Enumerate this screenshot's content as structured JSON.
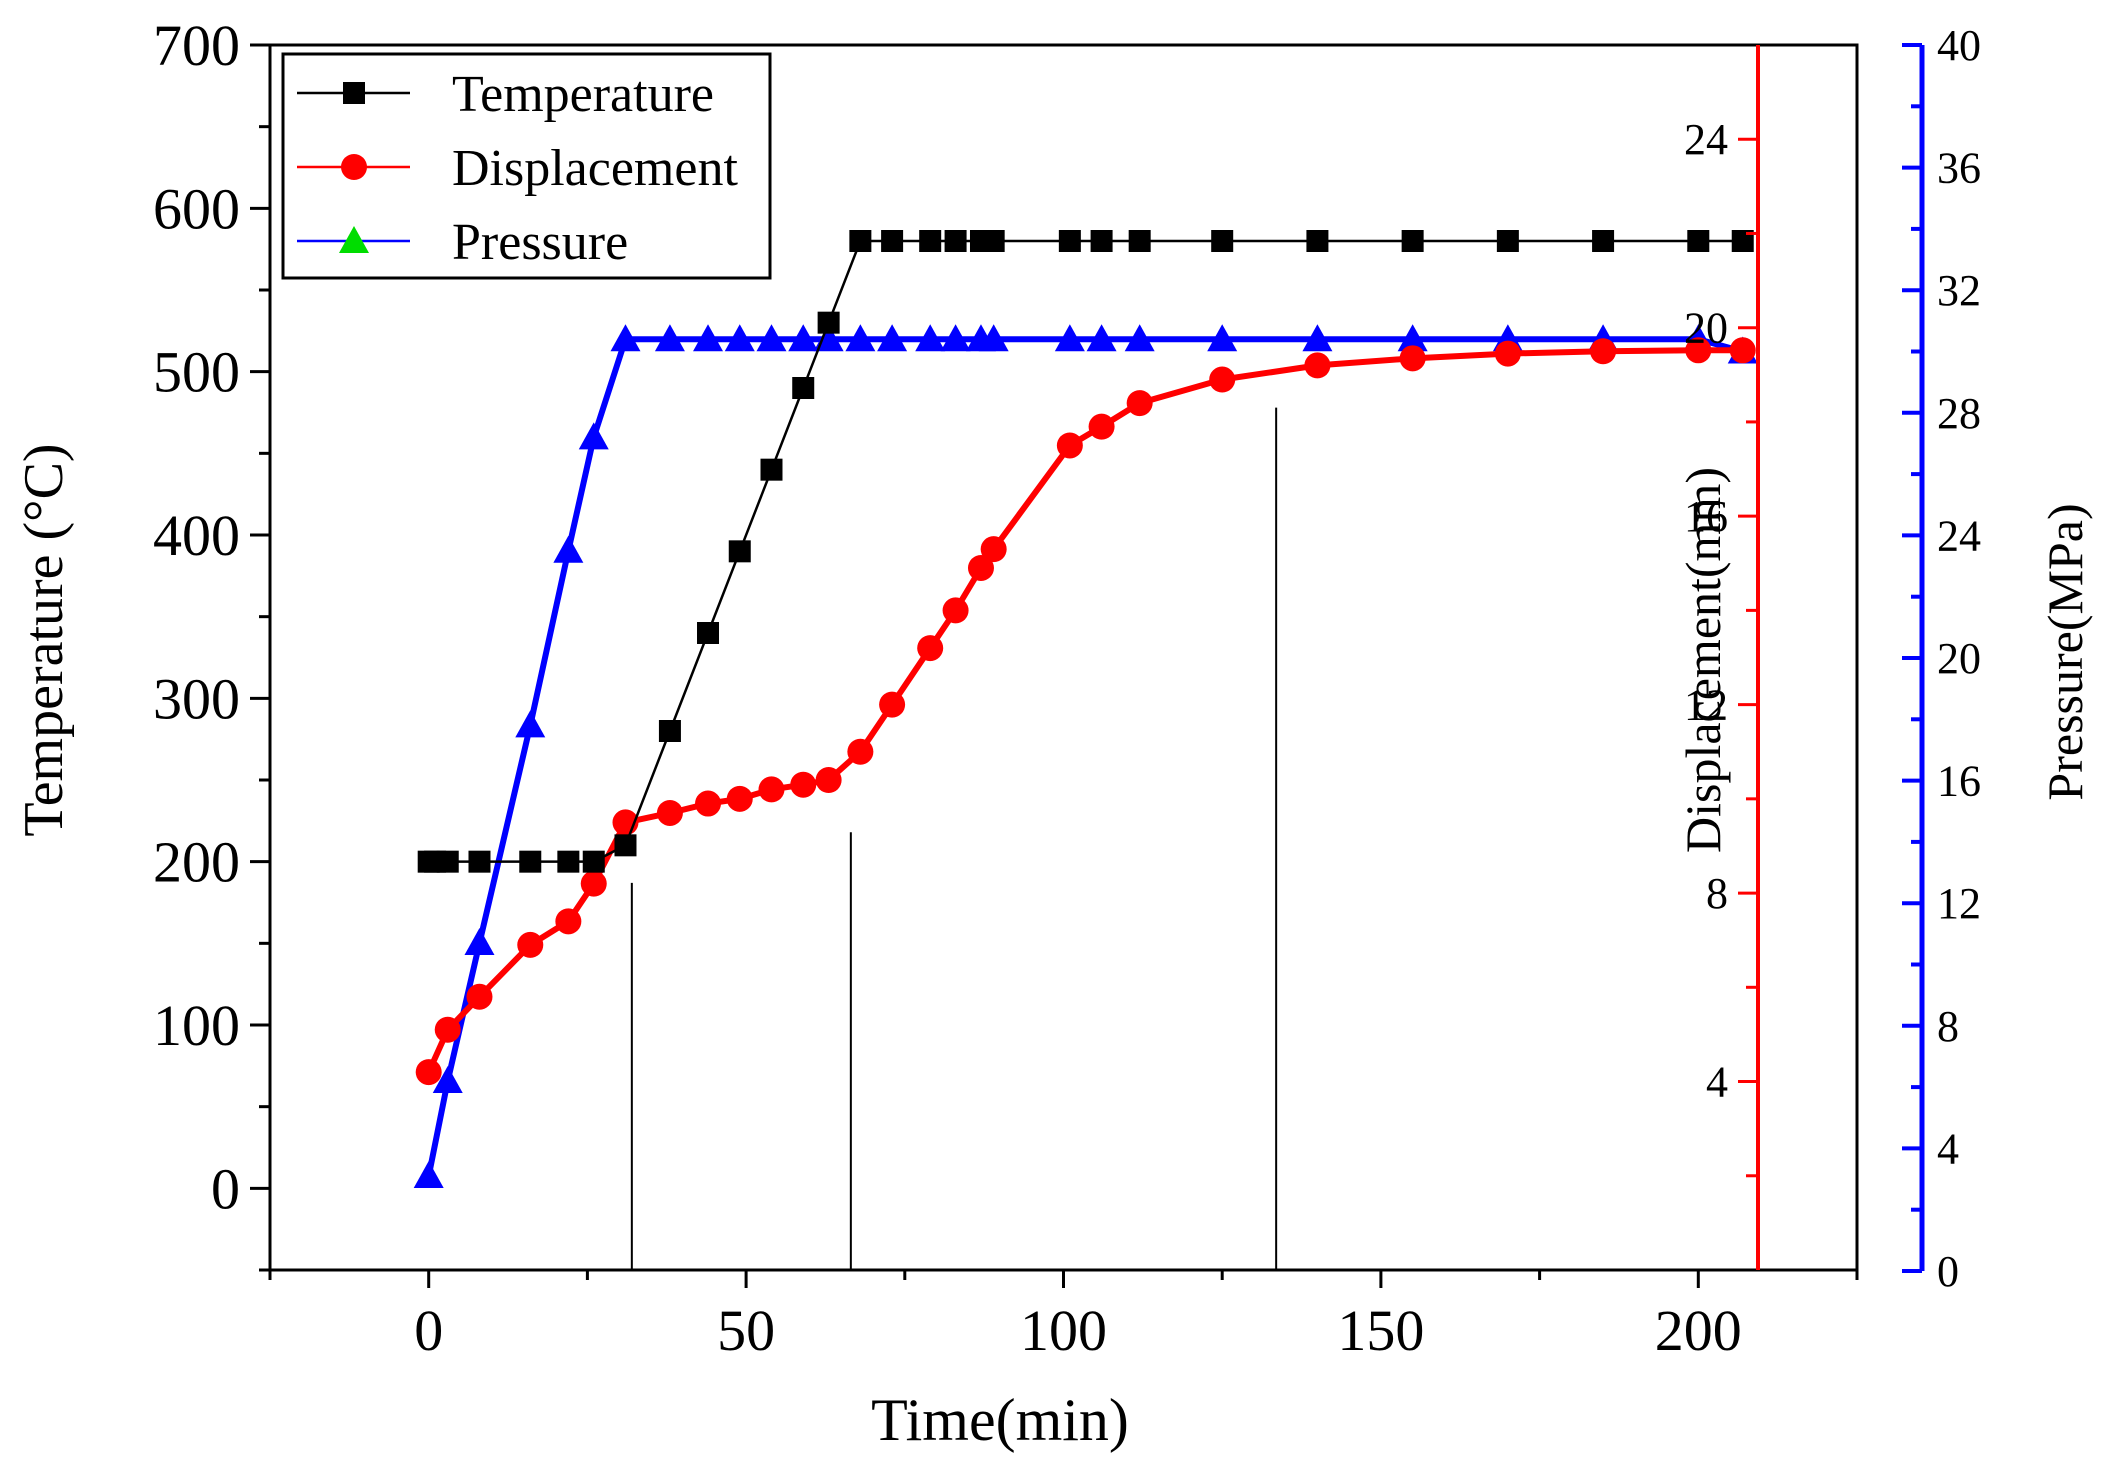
{
  "chart_data": {
    "type": "line",
    "xlabel": "Time(min)",
    "x_ticks": [
      "0",
      "50",
      "100",
      "150",
      "200"
    ],
    "xlim": [
      -25,
      225
    ],
    "axes": {
      "left": {
        "label": "Temperature (°C)",
        "ylim": [
          -50,
          700
        ],
        "ticks": [
          "0",
          "100",
          "200",
          "300",
          "400",
          "500",
          "600",
          "700"
        ],
        "color": "#000000"
      },
      "right1": {
        "label": "Displacement(mm)",
        "ylim": [
          0,
          26
        ],
        "ticks": [
          "4",
          "8",
          "12",
          "16",
          "20",
          "24"
        ],
        "color": "#ff0000"
      },
      "right2": {
        "label": "Pressure(MPa)",
        "ylim": [
          0,
          40
        ],
        "ticks": [
          "0",
          "4",
          "8",
          "12",
          "16",
          "20",
          "24",
          "28",
          "32",
          "36",
          "40"
        ],
        "color": "#0000ff"
      }
    },
    "legend": {
      "placement": "top-left",
      "entries": [
        {
          "label": "Temperature",
          "color": "#000000",
          "marker": "square"
        },
        {
          "label": "Displacement",
          "color": "#ff0000",
          "marker": "circle"
        },
        {
          "label": "Pressure",
          "color": "#0000ff",
          "marker": "triangle",
          "marker_color": "#00dd00"
        }
      ]
    },
    "series": [
      {
        "name": "Temperature",
        "axis": "left",
        "color": "#000000",
        "marker": "square",
        "x": [
          0,
          1,
          3,
          8,
          16,
          22,
          26,
          31,
          38,
          44,
          49,
          54,
          59,
          63,
          68,
          73,
          79,
          83,
          87,
          89,
          101,
          106,
          112,
          125,
          140,
          155,
          170,
          185,
          200,
          207
        ],
        "y": [
          200,
          200,
          200,
          200,
          200,
          200,
          200,
          210,
          280,
          340,
          390,
          440,
          490,
          530,
          580,
          580,
          580,
          580,
          580,
          580,
          580,
          580,
          580,
          580,
          580,
          580,
          580,
          580,
          580,
          580
        ]
      },
      {
        "name": "Displacement",
        "axis": "right1",
        "color": "#ff0000",
        "marker": "circle",
        "x": [
          0,
          3,
          8,
          16,
          22,
          26,
          31,
          38,
          44,
          49,
          54,
          59,
          63,
          68,
          73,
          79,
          83,
          87,
          89,
          101,
          106,
          112,
          125,
          140,
          155,
          170,
          185,
          200,
          207
        ],
        "y": [
          4.2,
          5.1,
          5.8,
          6.9,
          7.4,
          8.2,
          9.5,
          9.7,
          9.9,
          10.0,
          10.2,
          10.3,
          10.4,
          11.0,
          12.0,
          13.2,
          14.0,
          14.9,
          15.3,
          17.5,
          17.9,
          18.4,
          18.9,
          19.2,
          19.35,
          19.45,
          19.5,
          19.52,
          19.52
        ]
      },
      {
        "name": "Pressure",
        "axis": "right2",
        "color": "#0000ff",
        "marker": "triangle",
        "x": [
          0,
          3,
          8,
          16,
          22,
          26,
          31,
          38,
          44,
          49,
          54,
          59,
          63,
          68,
          73,
          79,
          83,
          87,
          89,
          101,
          106,
          112,
          125,
          140,
          155,
          170,
          185,
          200,
          207
        ],
        "y": [
          3.1,
          6.2,
          10.7,
          17.8,
          23.5,
          27.2,
          30.4,
          30.4,
          30.4,
          30.4,
          30.4,
          30.4,
          30.4,
          30.4,
          30.4,
          30.4,
          30.4,
          30.4,
          30.4,
          30.4,
          30.4,
          30.4,
          30.4,
          30.4,
          30.4,
          30.4,
          30.4,
          30.4,
          30.0
        ]
      }
    ],
    "vertical_lines": [
      {
        "x": 32,
        "y_top": 187
      },
      {
        "x": 66.5,
        "y_top": 218
      },
      {
        "x": 133.5,
        "y_top": 478
      }
    ]
  }
}
